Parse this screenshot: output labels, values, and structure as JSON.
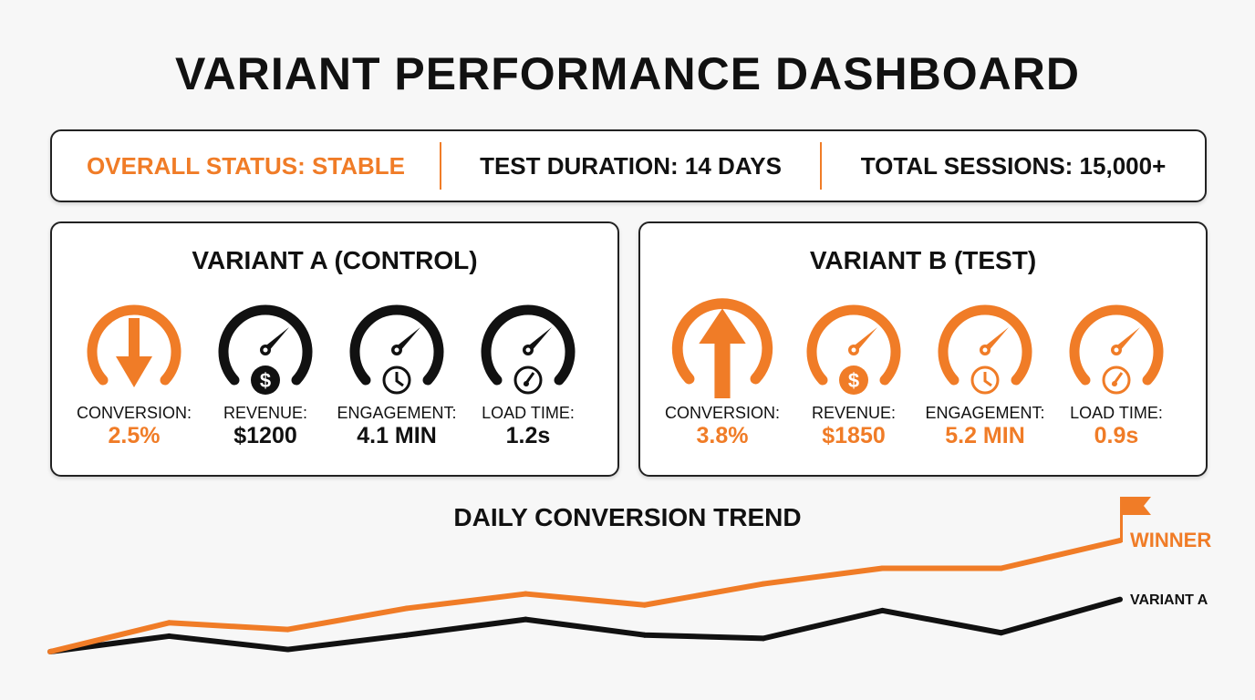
{
  "title": "VARIANT PERFORMANCE DASHBOARD",
  "status_bar": {
    "overall_status": "OVERALL STATUS: STABLE",
    "duration": "TEST DURATION: 14 DAYS",
    "sessions": "TOTAL SESSIONS: 15,000+"
  },
  "colors": {
    "accent": "#f07c27",
    "dark": "#111111"
  },
  "variant_a": {
    "title": "VARIANT A (CONTROL)",
    "metrics": [
      {
        "label": "CONVERSION:",
        "value": "2.5%",
        "icon": "arrow-down-gauge-icon"
      },
      {
        "label": "REVENUE:",
        "value": "$1200",
        "icon": "dollar-gauge-icon"
      },
      {
        "label": "ENGAGEMENT:",
        "value": "4.1 MIN",
        "icon": "clock-gauge-icon"
      },
      {
        "label": "LOAD TIME:",
        "value": "1.2s",
        "icon": "speedometer-gauge-icon"
      }
    ]
  },
  "variant_b": {
    "title": "VARIANT B (TEST)",
    "metrics": [
      {
        "label": "CONVERSION:",
        "value": "3.8%",
        "icon": "arrow-up-gauge-icon"
      },
      {
        "label": "REVENUE:",
        "value": "$1850",
        "icon": "dollar-gauge-icon"
      },
      {
        "label": "ENGAGEMENT:",
        "value": "5.2 MIN",
        "icon": "clock-gauge-icon"
      },
      {
        "label": "LOAD TIME:",
        "value": "0.9s",
        "icon": "speedometer-gauge-icon"
      }
    ]
  },
  "chart_data": {
    "type": "line",
    "title": "DAILY CONVERSION TREND",
    "x": [
      1,
      2,
      3,
      4,
      5,
      6,
      7,
      8,
      9,
      10
    ],
    "ylim": [
      0,
      100
    ],
    "grid": false,
    "axes_visible": false,
    "series": [
      {
        "name": "WINNER",
        "color": "#f07c27",
        "values": [
          0,
          26,
          20,
          39,
          52,
          42,
          61,
          75,
          75,
          100
        ]
      },
      {
        "name": "VARIANT A",
        "color": "#111111",
        "values": [
          0,
          14,
          2,
          15,
          29,
          15,
          12,
          37,
          17,
          47
        ]
      }
    ]
  }
}
